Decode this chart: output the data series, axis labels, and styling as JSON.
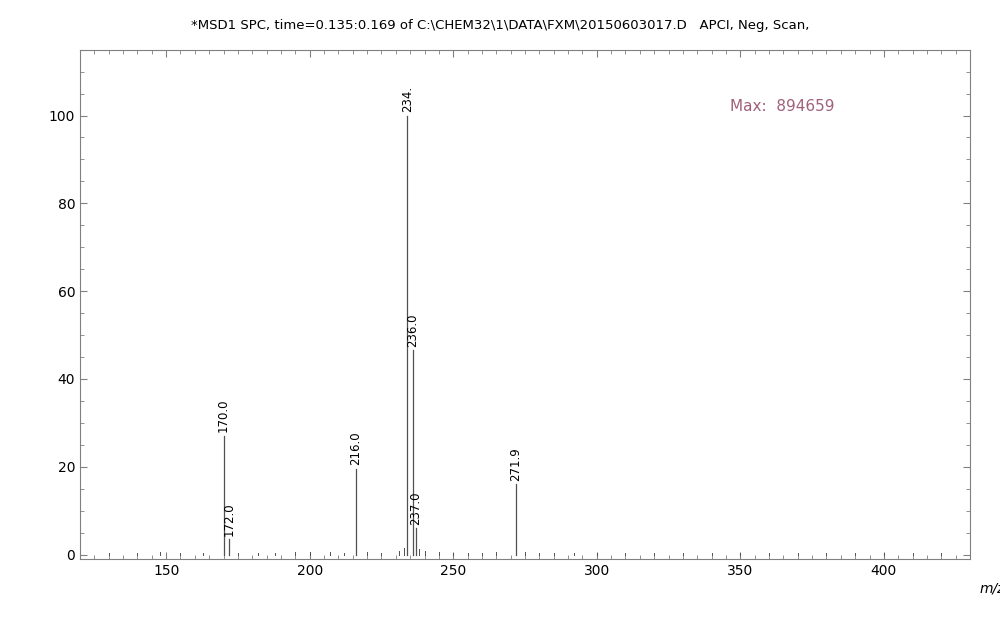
{
  "title": "*MSD1 SPC, time=0.135:0.169 of C:\\CHEM32\\1\\DATA\\FXM\\20150603017.D   APCI, Neg, Scan,",
  "max_label": "Max:  894659",
  "xlabel": "m/z",
  "xlim": [
    120,
    430
  ],
  "ylim": [
    -1,
    115
  ],
  "xticks": [
    150,
    200,
    250,
    300,
    350,
    400
  ],
  "yticks": [
    0,
    20,
    40,
    60,
    80,
    100
  ],
  "peaks": [
    {
      "mz": 172.0,
      "intensity": 3.5,
      "label": "172.0"
    },
    {
      "mz": 170.0,
      "intensity": 27.0,
      "label": "170.0"
    },
    {
      "mz": 216.0,
      "intensity": 19.5,
      "label": "216.0"
    },
    {
      "mz": 234.0,
      "intensity": 100.0,
      "label": "234."
    },
    {
      "mz": 236.0,
      "intensity": 46.5,
      "label": "236.0"
    },
    {
      "mz": 237.0,
      "intensity": 6.0,
      "label": "237.0"
    },
    {
      "mz": 271.9,
      "intensity": 16.0,
      "label": "271.9"
    }
  ],
  "noise_peaks": [
    {
      "mz": 130.0,
      "intensity": 0.4
    },
    {
      "mz": 140.0,
      "intensity": 0.4
    },
    {
      "mz": 148.0,
      "intensity": 0.5
    },
    {
      "mz": 155.0,
      "intensity": 0.4
    },
    {
      "mz": 163.0,
      "intensity": 0.4
    },
    {
      "mz": 175.0,
      "intensity": 0.4
    },
    {
      "mz": 182.0,
      "intensity": 0.4
    },
    {
      "mz": 188.0,
      "intensity": 0.4
    },
    {
      "mz": 195.0,
      "intensity": 0.6
    },
    {
      "mz": 200.0,
      "intensity": 0.5
    },
    {
      "mz": 207.0,
      "intensity": 0.5
    },
    {
      "mz": 212.0,
      "intensity": 0.4
    },
    {
      "mz": 220.0,
      "intensity": 0.5
    },
    {
      "mz": 225.0,
      "intensity": 0.4
    },
    {
      "mz": 231.0,
      "intensity": 0.8
    },
    {
      "mz": 233.0,
      "intensity": 1.5
    },
    {
      "mz": 238.0,
      "intensity": 1.2
    },
    {
      "mz": 240.0,
      "intensity": 0.8
    },
    {
      "mz": 245.0,
      "intensity": 0.5
    },
    {
      "mz": 250.0,
      "intensity": 0.4
    },
    {
      "mz": 255.0,
      "intensity": 0.4
    },
    {
      "mz": 260.0,
      "intensity": 0.4
    },
    {
      "mz": 265.0,
      "intensity": 0.5
    },
    {
      "mz": 275.0,
      "intensity": 0.5
    },
    {
      "mz": 280.0,
      "intensity": 0.4
    },
    {
      "mz": 285.0,
      "intensity": 0.4
    },
    {
      "mz": 292.0,
      "intensity": 0.4
    },
    {
      "mz": 300.0,
      "intensity": 0.4
    },
    {
      "mz": 310.0,
      "intensity": 0.4
    },
    {
      "mz": 320.0,
      "intensity": 0.3
    },
    {
      "mz": 330.0,
      "intensity": 0.3
    },
    {
      "mz": 340.0,
      "intensity": 0.3
    },
    {
      "mz": 350.0,
      "intensity": 0.3
    },
    {
      "mz": 360.0,
      "intensity": 0.3
    },
    {
      "mz": 370.0,
      "intensity": 0.3
    },
    {
      "mz": 380.0,
      "intensity": 0.3
    },
    {
      "mz": 390.0,
      "intensity": 0.3
    },
    {
      "mz": 400.0,
      "intensity": 0.3
    },
    {
      "mz": 410.0,
      "intensity": 0.3
    },
    {
      "mz": 420.0,
      "intensity": 0.3
    }
  ],
  "line_color": "#505050",
  "label_color": "#000000",
  "background_color": "#ffffff",
  "title_fontsize": 9.5,
  "label_fontsize": 8.5,
  "tick_fontsize": 10,
  "max_label_color": "#a0607a",
  "spine_color": "#808080"
}
